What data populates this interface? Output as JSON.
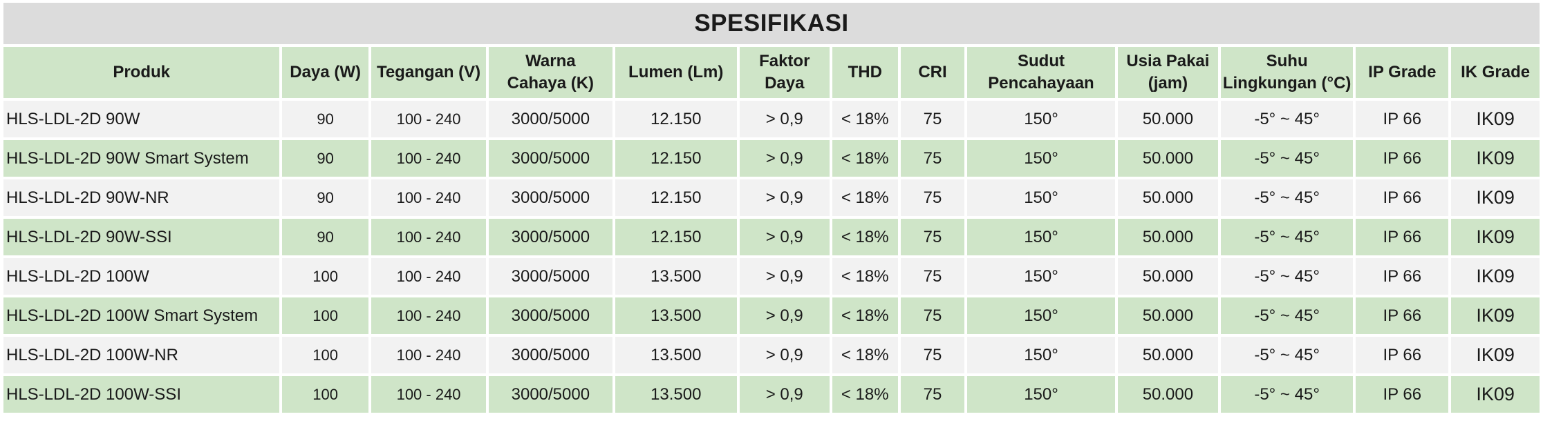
{
  "title": "SPESIFIKASI",
  "columns": [
    "Produk",
    "Daya (W)",
    "Tegangan (V)",
    "Warna\nCahaya (K)",
    "Lumen (Lm)",
    "Faktor\nDaya",
    "THD",
    "CRI",
    "Sudut\nPencahayaan",
    "Usia Pakai\n(jam)",
    "Suhu\nLingkungan (°C)",
    "IP Grade",
    "IK Grade"
  ],
  "rows": [
    [
      "HLS-LDL-2D 90W",
      "90",
      "100 - 240",
      "3000/5000",
      "12.150",
      "> 0,9",
      "< 18%",
      "75",
      "150°",
      "50.000",
      "-5° ~ 45°",
      "IP 66",
      "IK09"
    ],
    [
      "HLS-LDL-2D 90W Smart System",
      "90",
      "100 - 240",
      "3000/5000",
      "12.150",
      "> 0,9",
      "< 18%",
      "75",
      "150°",
      "50.000",
      "-5° ~ 45°",
      "IP 66",
      "IK09"
    ],
    [
      "HLS-LDL-2D 90W-NR",
      "90",
      "100 - 240",
      "3000/5000",
      "12.150",
      "> 0,9",
      "< 18%",
      "75",
      "150°",
      "50.000",
      "-5° ~ 45°",
      "IP 66",
      "IK09"
    ],
    [
      "HLS-LDL-2D 90W-SSI",
      "90",
      "100 - 240",
      "3000/5000",
      "12.150",
      "> 0,9",
      "< 18%",
      "75",
      "150°",
      "50.000",
      "-5° ~ 45°",
      "IP 66",
      "IK09"
    ],
    [
      "HLS-LDL-2D 100W",
      "100",
      "100 - 240",
      "3000/5000",
      "13.500",
      "> 0,9",
      "< 18%",
      "75",
      "150°",
      "50.000",
      "-5° ~ 45°",
      "IP 66",
      "IK09"
    ],
    [
      "HLS-LDL-2D 100W Smart System",
      "100",
      "100 - 240",
      "3000/5000",
      "13.500",
      "> 0,9",
      "< 18%",
      "75",
      "150°",
      "50.000",
      "-5° ~ 45°",
      "IP 66",
      "IK09"
    ],
    [
      "HLS-LDL-2D 100W-NR",
      "100",
      "100 - 240",
      "3000/5000",
      "13.500",
      "> 0,9",
      "< 18%",
      "75",
      "150°",
      "50.000",
      "-5° ~ 45°",
      "IP 66",
      "IK09"
    ],
    [
      "HLS-LDL-2D 100W-SSI",
      "100",
      "100 - 240",
      "3000/5000",
      "13.500",
      "> 0,9",
      "< 18%",
      "75",
      "150°",
      "50.000",
      "-5° ~ 45°",
      "IP 66",
      "IK09"
    ]
  ],
  "colors": {
    "title_bg": "#dcdcdc",
    "header_bg": "#cfe5c8",
    "row_light": "#f2f2f2",
    "row_green": "#cfe5c8"
  }
}
